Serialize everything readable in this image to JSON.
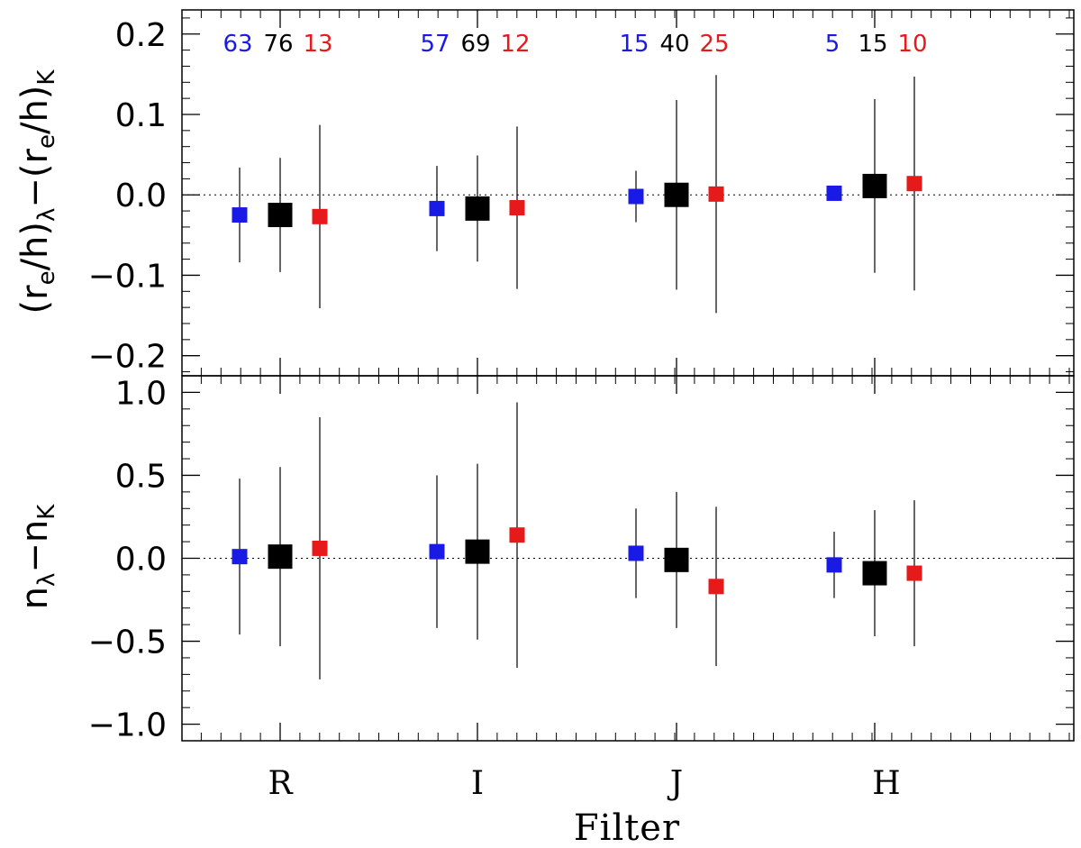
{
  "chart_data": {
    "type": "scatter",
    "xlabel": "Filter",
    "categories": [
      "R",
      "I",
      "J",
      "H"
    ],
    "colors": {
      "blue": "#1a1ae6",
      "black": "#000000",
      "red": "#e61a1a"
    },
    "counts": {
      "blue": [
        "63",
        "57",
        "15",
        "5"
      ],
      "black": [
        "76",
        "69",
        "40",
        "15"
      ],
      "red": [
        "13",
        "12",
        "25",
        "10"
      ]
    },
    "panels": [
      {
        "id": "top",
        "ylabel": {
          "pre": "(r",
          "s1": "e",
          "mid1": "/h)",
          "s2": "λ",
          "mid2": "−(r",
          "s3": "e",
          "mid3": "/h)",
          "s4": "K"
        },
        "ylim": [
          -0.225,
          0.23
        ],
        "yticks": [
          -0.2,
          -0.1,
          0.0,
          0.1,
          0.2
        ],
        "ytick_labels": [
          "−0.2",
          "−0.1",
          "0.0",
          "0.1",
          "0.2"
        ],
        "series": [
          {
            "group": "blue",
            "y": [
              -0.025,
              -0.017,
              -0.002,
              0.002
            ],
            "yerr": [
              0.059,
              0.053,
              0.032,
              0.0
            ]
          },
          {
            "group": "black",
            "y": [
              -0.025,
              -0.017,
              0.0,
              0.011
            ],
            "yerr": [
              0.071,
              0.066,
              0.118,
              0.108
            ]
          },
          {
            "group": "red",
            "y": [
              -0.027,
              -0.016,
              0.001,
              0.014
            ],
            "yerr": [
              0.114,
              0.101,
              0.148,
              0.133
            ]
          }
        ]
      },
      {
        "id": "bottom",
        "ylabel": {
          "pre": "n",
          "s1": "λ",
          "mid1": "−n",
          "s2": "K"
        },
        "ylim": [
          -1.1,
          1.1
        ],
        "yticks": [
          -1.0,
          -0.5,
          0.0,
          0.5,
          1.0
        ],
        "ytick_labels": [
          "−1.0",
          "−0.5",
          "0.0",
          "0.5",
          "1.0"
        ],
        "series": [
          {
            "group": "blue",
            "y": [
              0.01,
              0.04,
              0.03,
              -0.04
            ],
            "yerr": [
              0.47,
              0.46,
              0.27,
              0.2
            ]
          },
          {
            "group": "black",
            "y": [
              0.01,
              0.04,
              -0.01,
              -0.09
            ],
            "yerr": [
              0.54,
              0.53,
              0.41,
              0.38
            ]
          },
          {
            "group": "red",
            "y": [
              0.06,
              0.14,
              -0.17,
              -0.09
            ],
            "yerr": [
              0.79,
              0.8,
              0.48,
              0.44
            ]
          }
        ]
      }
    ]
  }
}
